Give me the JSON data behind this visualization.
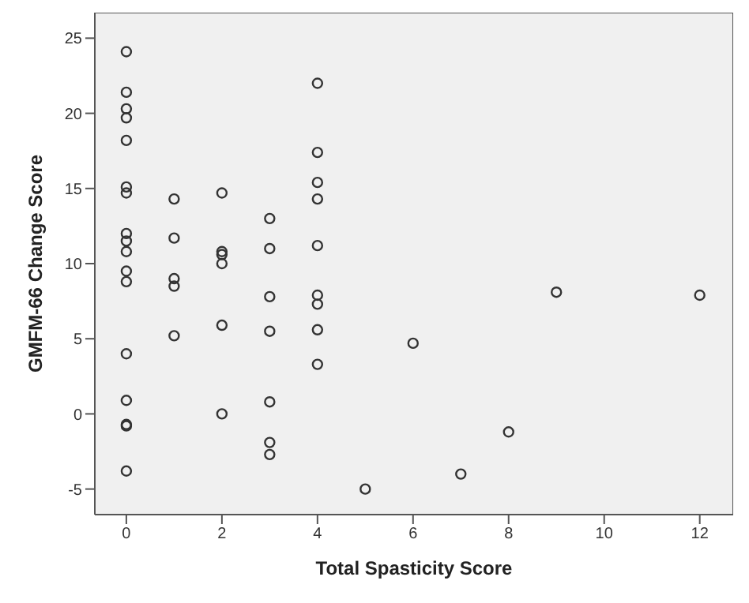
{
  "chart_data": {
    "type": "scatter",
    "xlabel": "Total Spasticity Score",
    "ylabel": "GMFM-66 Change Score",
    "x": [
      0,
      0,
      0,
      0,
      0,
      0,
      0,
      0,
      0,
      0,
      0,
      0,
      0,
      0,
      0,
      0,
      0,
      1,
      1,
      1,
      1,
      1,
      2,
      2,
      2,
      2,
      2,
      2,
      3,
      3,
      3,
      3,
      3,
      3,
      3,
      4,
      4,
      4,
      4,
      4,
      4,
      4,
      4,
      4,
      5,
      6,
      7,
      8,
      9,
      12
    ],
    "values": [
      24.1,
      21.4,
      20.3,
      19.7,
      18.2,
      15.1,
      14.7,
      12.0,
      11.5,
      10.8,
      9.5,
      8.8,
      4.0,
      0.9,
      -0.7,
      -0.8,
      -3.8,
      14.3,
      11.7,
      9.0,
      8.5,
      5.2,
      14.7,
      10.8,
      10.6,
      10.0,
      5.9,
      0.0,
      13.0,
      11.0,
      7.8,
      5.5,
      0.8,
      -1.9,
      -2.7,
      22.0,
      17.4,
      15.4,
      14.3,
      11.2,
      7.9,
      7.3,
      5.6,
      3.3,
      -5.0,
      4.7,
      -4.0,
      -1.2,
      8.1,
      7.9
    ],
    "color": "#333333",
    "marker": "circle",
    "xlim": [
      -0.66,
      12.7
    ],
    "xticks": [
      0,
      2,
      4,
      6,
      8,
      10,
      12
    ],
    "ylim": [
      -6.7,
      26.7
    ],
    "yticks": [
      -5,
      0,
      5,
      10,
      15,
      20,
      25
    ],
    "grid": false
  }
}
